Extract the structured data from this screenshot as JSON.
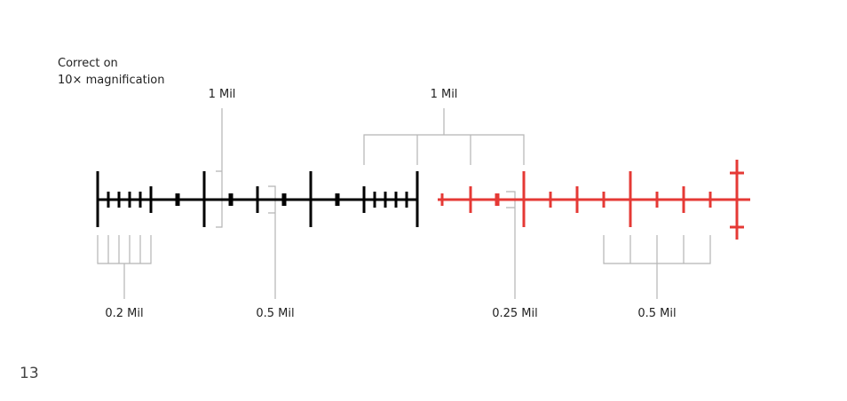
{
  "note": {
    "line1": "Correct on",
    "line2": "10× magnification"
  },
  "labels": [
    "1 Mil",
    "1 Mil",
    "0.2 Mil",
    "0.5 Mil",
    "0.25 Mil",
    "0.5 Mil"
  ],
  "page_number": "13"
}
